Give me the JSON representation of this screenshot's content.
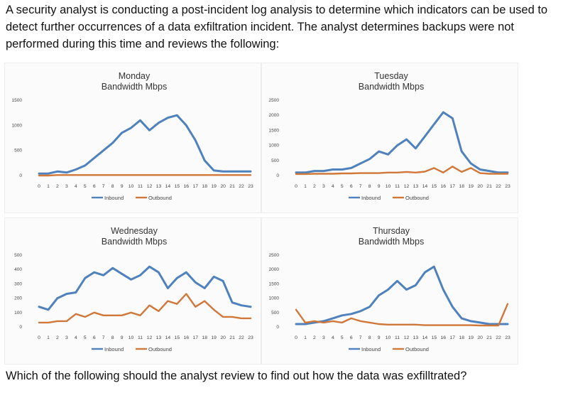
{
  "intro_text": "A security analyst is conducting a post-incident log analysis to determine which indicators can be used to detect further occurrences of a data exfiltration incident. The analyst determines backups were not performed during this time and reviews the following:",
  "question_text": "Which of the following should the analyst review to find out how the data was exfilltrated?",
  "colors": {
    "inbound": "#4f81bd",
    "outbound": "#d0773a"
  },
  "chart_data": [
    {
      "type": "line",
      "title": [
        "Monday",
        "Bandwidth Mbps"
      ],
      "x": [
        0,
        1,
        2,
        3,
        4,
        5,
        6,
        7,
        8,
        9,
        10,
        11,
        12,
        13,
        14,
        15,
        16,
        17,
        18,
        19,
        20,
        21,
        22,
        23
      ],
      "ylim": [
        0,
        1500
      ],
      "yticks": [
        "0",
        "500",
        "1000",
        "1500"
      ],
      "series": [
        {
          "name": "Inbound",
          "values": [
            40,
            40,
            80,
            60,
            120,
            200,
            350,
            500,
            650,
            850,
            950,
            1100,
            900,
            1050,
            1150,
            1200,
            1000,
            700,
            300,
            100,
            80,
            80,
            80,
            80
          ]
        },
        {
          "name": "Outbound",
          "values": [
            0,
            0,
            10,
            10,
            10,
            10,
            10,
            10,
            10,
            10,
            10,
            10,
            10,
            10,
            10,
            10,
            10,
            10,
            10,
            10,
            10,
            10,
            10,
            10
          ]
        }
      ]
    },
    {
      "type": "line",
      "title": [
        "Tuesday",
        "Bandwidth Mbps"
      ],
      "x": [
        0,
        1,
        2,
        3,
        4,
        5,
        6,
        7,
        8,
        9,
        10,
        11,
        12,
        13,
        14,
        15,
        16,
        17,
        18,
        19,
        20,
        21,
        22,
        23
      ],
      "ylim": [
        0,
        2500
      ],
      "yticks": [
        "0",
        "500",
        "1000",
        "1500",
        "2000",
        "2500"
      ],
      "series": [
        {
          "name": "Inbound",
          "values": [
            100,
            100,
            150,
            150,
            200,
            200,
            250,
            400,
            550,
            800,
            700,
            1000,
            1200,
            900,
            1300,
            1700,
            2100,
            1900,
            800,
            400,
            200,
            150,
            100,
            100
          ]
        },
        {
          "name": "Outbound",
          "values": [
            50,
            50,
            60,
            60,
            60,
            70,
            70,
            80,
            80,
            80,
            100,
            100,
            120,
            100,
            130,
            250,
            100,
            300,
            120,
            250,
            80,
            60,
            60,
            60
          ]
        }
      ]
    },
    {
      "type": "line",
      "title": [
        "Wednesday",
        "Bandwidth Mbps"
      ],
      "x": [
        0,
        1,
        2,
        3,
        4,
        5,
        6,
        7,
        8,
        9,
        10,
        11,
        12,
        13,
        14,
        15,
        16,
        17,
        18,
        19,
        20,
        21,
        22,
        23
      ],
      "ylim": [
        0,
        500
      ],
      "yticks": [
        "0",
        "100",
        "200",
        "300",
        "400",
        "500"
      ],
      "series": [
        {
          "name": "Inbound",
          "values": [
            140,
            120,
            200,
            230,
            240,
            340,
            380,
            360,
            410,
            370,
            330,
            360,
            420,
            380,
            270,
            340,
            380,
            310,
            270,
            350,
            320,
            170,
            150,
            140
          ]
        },
        {
          "name": "Outbound",
          "values": [
            30,
            30,
            40,
            40,
            90,
            70,
            100,
            80,
            80,
            80,
            100,
            80,
            150,
            110,
            180,
            160,
            230,
            140,
            180,
            120,
            70,
            70,
            60,
            60
          ]
        }
      ]
    },
    {
      "type": "line",
      "title": [
        "Thursday",
        "Bandwidth Mbps"
      ],
      "x": [
        0,
        1,
        2,
        3,
        4,
        5,
        6,
        7,
        8,
        9,
        10,
        11,
        12,
        13,
        14,
        15,
        16,
        17,
        18,
        19,
        20,
        21,
        22,
        23
      ],
      "ylim": [
        0,
        2500
      ],
      "yticks": [
        "0",
        "500",
        "1000",
        "1500",
        "2000",
        "2500"
      ],
      "series": [
        {
          "name": "Inbound",
          "values": [
            100,
            100,
            150,
            200,
            300,
            400,
            450,
            550,
            700,
            1100,
            1300,
            1600,
            1300,
            1450,
            1900,
            2100,
            1300,
            700,
            300,
            200,
            150,
            100,
            100,
            100
          ]
        },
        {
          "name": "Outbound",
          "values": [
            600,
            150,
            200,
            150,
            200,
            150,
            300,
            200,
            150,
            100,
            80,
            80,
            80,
            80,
            60,
            60,
            60,
            60,
            60,
            60,
            50,
            50,
            50,
            800
          ]
        }
      ]
    }
  ]
}
